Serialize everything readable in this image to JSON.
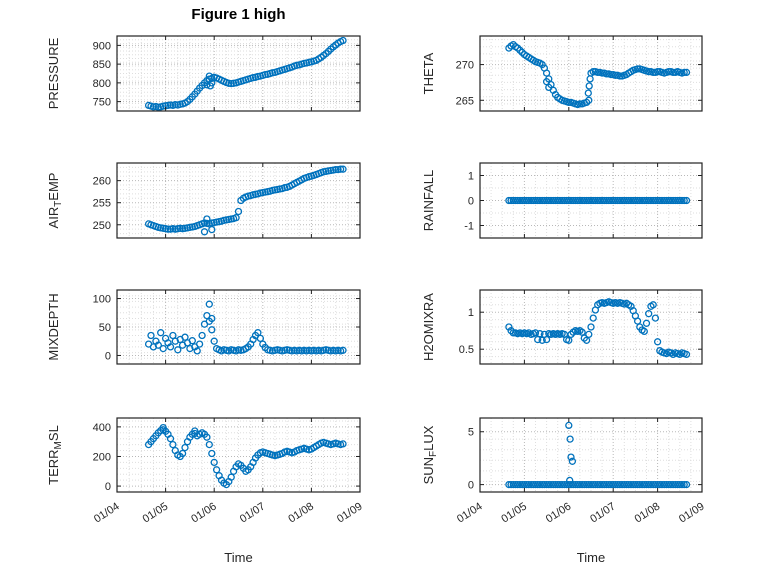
{
  "figure": {
    "title": "Figure 1 high",
    "background": "#ffffff",
    "marker_color": "#0072BD",
    "axis_color": "#222222",
    "grid_color": "#b8b8b8",
    "minor_grid_color": "#dedede",
    "tick_label_color": "#262626"
  },
  "time_axis": {
    "xlabel": "Time",
    "xlim": [
      4,
      9
    ],
    "xticks": [
      4,
      5,
      6,
      7,
      8,
      9
    ],
    "xtick_labels": [
      "01/04",
      "01/05",
      "01/06",
      "01/07",
      "01/08",
      "01/09"
    ],
    "x_base": {
      "start": 4.65,
      "step": 0.05
    }
  },
  "chart_data": [
    {
      "id": "pressure",
      "type": "scatter",
      "ylabel_plain": "PRESSURE",
      "ylabel_segments": [
        {
          "t": "PRESSURE",
          "sub": false
        }
      ],
      "yticks": [
        750,
        800,
        850,
        900
      ],
      "ylim": [
        725,
        925
      ],
      "y_minor_step": 10,
      "y": [
        740,
        738,
        736,
        737,
        735,
        736,
        738,
        739,
        740,
        741,
        740,
        742,
        741,
        743,
        744,
        746,
        750,
        756,
        763,
        770,
        778,
        786,
        793,
        800,
        806,
        810,
        812,
        815,
        813,
        810,
        807,
        804,
        801,
        799,
        798,
        799,
        800,
        802,
        804,
        806,
        808,
        810,
        812,
        814,
        815,
        817,
        818,
        820,
        822,
        823,
        825,
        827,
        828,
        830,
        832,
        834,
        836,
        838,
        840,
        842,
        845,
        847,
        848,
        850,
        852,
        853,
        855,
        856,
        858,
        860,
        864,
        868,
        873,
        878,
        884,
        890,
        896,
        901,
        906,
        910,
        913
      ],
      "extra_points": [
        [
          5.85,
          795
        ],
        [
          5.9,
          818
        ],
        [
          5.92,
          792
        ],
        [
          5.95,
          800
        ]
      ]
    },
    {
      "id": "theta",
      "type": "scatter",
      "ylabel_plain": "THETA",
      "ylabel_segments": [
        {
          "t": "THETA",
          "sub": false
        }
      ],
      "yticks": [
        265,
        270
      ],
      "ylim": [
        263.5,
        274
      ],
      "y_minor_step": 1,
      "y": [
        272.3,
        272.6,
        272.8,
        272.5,
        272.3,
        272.0,
        271.7,
        271.4,
        271.2,
        271.0,
        270.8,
        270.6,
        270.4,
        270.3,
        270.2,
        270.0,
        269.5,
        268.8,
        268.0,
        267.2,
        266.4,
        265.8,
        265.4,
        265.2,
        265.0,
        264.9,
        264.8,
        264.7,
        264.7,
        264.6,
        264.5,
        264.4,
        264.5,
        264.5,
        264.6,
        264.7,
        265.0,
        268.8,
        269.0,
        269.0,
        268.9,
        268.9,
        268.8,
        268.8,
        268.7,
        268.7,
        268.6,
        268.6,
        268.5,
        268.5,
        268.4,
        268.4,
        268.5,
        268.6,
        268.8,
        269.0,
        269.2,
        269.3,
        269.4,
        269.4,
        269.3,
        269.2,
        269.1,
        269.0,
        269.0,
        268.9,
        268.9,
        269.0,
        269.0,
        268.9,
        268.8,
        268.9,
        269.0,
        269.0,
        268.9,
        268.9,
        269.0,
        268.9,
        268.8,
        268.9,
        268.9
      ],
      "extra_points": [
        [
          6.44,
          266.0
        ],
        [
          6.46,
          267.0
        ],
        [
          6.48,
          268.0
        ],
        [
          5.5,
          267.6
        ],
        [
          5.55,
          266.8
        ]
      ]
    },
    {
      "id": "air_temp",
      "type": "scatter",
      "ylabel_plain": "AIR_TEMP",
      "ylabel_segments": [
        {
          "t": "AIR",
          "sub": false
        },
        {
          "t": "T",
          "sub": true
        },
        {
          "t": "EMP",
          "sub": false
        }
      ],
      "yticks": [
        250,
        255,
        260
      ],
      "ylim": [
        247,
        264
      ],
      "y_minor_step": 1,
      "y": [
        250.2,
        250.0,
        249.8,
        249.6,
        249.4,
        249.3,
        249.2,
        249.1,
        249.0,
        249.0,
        249.1,
        249.0,
        249.1,
        249.2,
        249.1,
        249.2,
        249.3,
        249.4,
        249.5,
        249.6,
        249.8,
        250.0,
        250.2,
        250.4,
        250.3,
        250.2,
        250.4,
        250.5,
        250.6,
        250.7,
        250.8,
        251.0,
        251.1,
        251.2,
        251.3,
        251.4,
        251.6,
        253.0,
        255.5,
        256.0,
        256.3,
        256.5,
        256.6,
        256.8,
        256.9,
        257.0,
        257.2,
        257.3,
        257.4,
        257.5,
        257.6,
        257.8,
        257.9,
        258.0,
        258.1,
        258.2,
        258.4,
        258.5,
        258.7,
        259.0,
        259.3,
        259.6,
        259.9,
        260.2,
        260.5,
        260.7,
        260.9,
        261.0,
        261.2,
        261.4,
        261.6,
        261.8,
        262.0,
        262.1,
        262.2,
        262.3,
        262.4,
        262.5,
        262.5,
        262.6,
        262.6
      ],
      "extra_points": [
        [
          5.8,
          248.4
        ],
        [
          5.85,
          251.3
        ],
        [
          5.95,
          248.9
        ]
      ]
    },
    {
      "id": "rainfall",
      "type": "scatter",
      "ylabel_plain": "RAINFALL",
      "ylabel_segments": [
        {
          "t": "RAINFALL",
          "sub": false
        }
      ],
      "yticks": [
        -1,
        0,
        1
      ],
      "ylim": [
        -1.5,
        1.5
      ],
      "y_minor_step": 0.5,
      "y": [
        0,
        0,
        0,
        0,
        0,
        0,
        0,
        0,
        0,
        0,
        0,
        0,
        0,
        0,
        0,
        0,
        0,
        0,
        0,
        0,
        0,
        0,
        0,
        0,
        0,
        0,
        0,
        0,
        0,
        0,
        0,
        0,
        0,
        0,
        0,
        0,
        0,
        0,
        0,
        0,
        0,
        0,
        0,
        0,
        0,
        0,
        0,
        0,
        0,
        0,
        0,
        0,
        0,
        0,
        0,
        0,
        0,
        0,
        0,
        0,
        0,
        0,
        0,
        0,
        0,
        0,
        0,
        0,
        0,
        0,
        0,
        0,
        0,
        0,
        0,
        0,
        0,
        0,
        0,
        0,
        0
      ],
      "extra_points": []
    },
    {
      "id": "mixdepth",
      "type": "scatter",
      "ylabel_plain": "MIXDEPTH",
      "ylabel_segments": [
        {
          "t": "MIXDEPTH",
          "sub": false
        }
      ],
      "yticks": [
        0,
        50,
        100
      ],
      "ylim": [
        -15,
        115
      ],
      "y_minor_step": 10,
      "y": [
        20,
        35,
        15,
        25,
        18,
        40,
        12,
        30,
        22,
        15,
        35,
        25,
        10,
        28,
        18,
        32,
        22,
        12,
        26,
        15,
        8,
        20,
        35,
        55,
        70,
        90,
        45,
        25,
        12,
        10,
        8,
        10,
        9,
        8,
        10,
        9,
        8,
        10,
        9,
        10,
        12,
        15,
        20,
        28,
        35,
        40,
        30,
        20,
        14,
        10,
        9,
        8,
        9,
        10,
        9,
        8,
        9,
        10,
        9,
        8,
        9,
        8,
        9,
        8,
        9,
        8,
        9,
        8,
        9,
        8,
        9,
        8,
        9,
        10,
        9,
        8,
        9,
        8,
        9,
        8,
        9
      ],
      "extra_points": [
        [
          5.9,
          60
        ],
        [
          5.95,
          65
        ]
      ]
    },
    {
      "id": "h2omixra",
      "type": "scatter",
      "ylabel_plain": "H2OMIXRA",
      "ylabel_segments": [
        {
          "t": "H2OMIXRA",
          "sub": false
        }
      ],
      "yticks": [
        0.5,
        1
      ],
      "ylim": [
        0.3,
        1.3
      ],
      "y_minor_step": 0.1,
      "y": [
        0.8,
        0.75,
        0.72,
        0.72,
        0.71,
        0.72,
        0.71,
        0.72,
        0.71,
        0.72,
        0.7,
        0.71,
        0.72,
        0.63,
        0.71,
        0.62,
        0.7,
        0.63,
        0.71,
        0.7,
        0.71,
        0.7,
        0.71,
        0.7,
        0.71,
        0.7,
        0.63,
        0.62,
        0.7,
        0.73,
        0.75,
        0.74,
        0.75,
        0.73,
        0.65,
        0.62,
        0.7,
        0.8,
        0.92,
        1.03,
        1.1,
        1.12,
        1.13,
        1.12,
        1.13,
        1.14,
        1.13,
        1.12,
        1.13,
        1.12,
        1.13,
        1.12,
        1.11,
        1.12,
        1.1,
        1.08,
        1.02,
        0.95,
        0.88,
        0.8,
        0.76,
        0.74,
        0.85,
        0.98,
        1.08,
        1.1,
        0.92,
        0.6,
        0.48,
        0.46,
        0.45,
        0.44,
        0.46,
        0.45,
        0.43,
        0.45,
        0.44,
        0.43,
        0.45,
        0.44,
        0.43
      ],
      "extra_points": []
    },
    {
      "id": "terr_msl",
      "type": "scatter",
      "ylabel_plain": "TERR_MSL",
      "ylabel_segments": [
        {
          "t": "TERR",
          "sub": false
        },
        {
          "t": "M",
          "sub": true
        },
        {
          "t": "SL",
          "sub": false
        }
      ],
      "yticks": [
        0,
        200,
        400
      ],
      "ylim": [
        -40,
        460
      ],
      "y_minor_step": 40,
      "y": [
        280,
        300,
        320,
        340,
        360,
        375,
        380,
        370,
        350,
        320,
        280,
        240,
        210,
        200,
        220,
        260,
        300,
        330,
        350,
        355,
        340,
        350,
        360,
        350,
        330,
        280,
        220,
        160,
        110,
        70,
        40,
        20,
        10,
        30,
        60,
        100,
        130,
        150,
        140,
        120,
        100,
        110,
        130,
        160,
        190,
        210,
        225,
        230,
        225,
        220,
        215,
        210,
        205,
        210,
        215,
        220,
        230,
        235,
        230,
        225,
        230,
        240,
        245,
        250,
        255,
        250,
        245,
        250,
        260,
        270,
        280,
        290,
        295,
        290,
        285,
        280,
        285,
        290,
        285,
        280,
        285
      ],
      "extra_points": [
        [
          4.95,
          395
        ],
        [
          5.6,
          372
        ]
      ]
    },
    {
      "id": "sun_flux",
      "type": "scatter",
      "ylabel_plain": "SUN_FLUX",
      "ylabel_segments": [
        {
          "t": "SUN",
          "sub": false
        },
        {
          "t": "F",
          "sub": true
        },
        {
          "t": "LUX",
          "sub": false
        }
      ],
      "yticks": [
        0,
        5
      ],
      "ylim": [
        -0.7,
        6.3
      ],
      "y_minor_step": 1,
      "y": [
        0,
        0,
        0,
        0,
        0,
        0,
        0,
        0,
        0,
        0,
        0,
        0,
        0,
        0,
        0,
        0,
        0,
        0,
        0,
        0,
        0,
        0,
        0,
        0,
        0,
        0,
        0,
        0,
        0,
        0,
        0,
        0,
        0,
        0,
        0,
        0,
        0,
        0,
        0,
        0,
        0,
        0,
        0,
        0,
        0,
        0,
        0,
        0,
        0,
        0,
        0,
        0,
        0,
        0,
        0,
        0,
        0,
        0,
        0,
        0,
        0,
        0,
        0,
        0,
        0,
        0,
        0,
        0,
        0,
        0,
        0,
        0,
        0,
        0,
        0,
        0,
        0,
        0,
        0,
        0,
        0
      ],
      "extra_points": [
        [
          6.0,
          5.6
        ],
        [
          6.03,
          4.3
        ],
        [
          6.05,
          2.6
        ],
        [
          6.08,
          2.2
        ],
        [
          6.02,
          0.4
        ]
      ]
    }
  ]
}
